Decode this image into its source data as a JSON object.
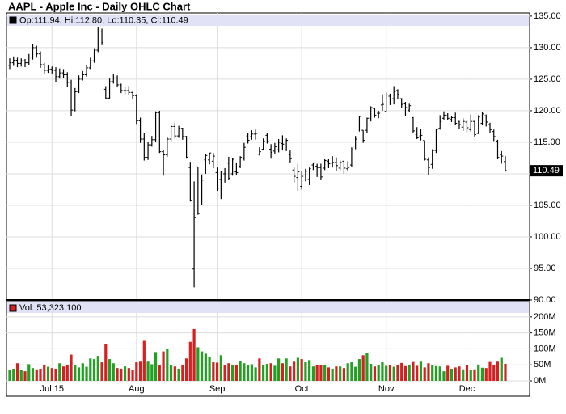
{
  "chart_data": {
    "type": "ohlc",
    "title": "AAPL - Apple Inc - Daily OHLC Chart",
    "ohlc_legend": "Op:111.94, Hi:112.80, Lo:110.35, Cl:110.49",
    "volume_legend": "Vol: 53,323,100",
    "categories": [
      null,
      null,
      null,
      null,
      null,
      null,
      null,
      null,
      null,
      null,
      null,
      "Jul 15",
      null,
      null,
      null,
      null,
      null,
      null,
      null,
      null,
      null,
      null,
      null,
      null,
      null,
      null,
      null,
      null,
      null,
      null,
      null,
      null,
      null,
      "Aug",
      null,
      null,
      null,
      null,
      null,
      null,
      null,
      null,
      null,
      null,
      null,
      null,
      null,
      null,
      null,
      null,
      null,
      null,
      null,
      null,
      "Sep",
      null,
      null,
      null,
      null,
      null,
      null,
      null,
      null,
      null,
      null,
      null,
      null,
      null,
      null,
      null,
      null,
      null,
      null,
      null,
      null,
      null,
      "Oct",
      null,
      null,
      null,
      null,
      null,
      null,
      null,
      null,
      null,
      null,
      null,
      null,
      null,
      null,
      null,
      null,
      null,
      null,
      null,
      null,
      null,
      "Nov",
      null,
      null,
      null,
      null,
      null,
      null,
      null,
      null,
      null,
      null,
      null,
      null,
      null,
      null,
      null,
      null,
      null,
      null,
      null,
      null,
      "Dec",
      null,
      null,
      null,
      null,
      null,
      null,
      null,
      null,
      null,
      null
    ],
    "open": [
      127.2,
      127.6,
      128.0,
      127.5,
      127.9,
      127.6,
      128.5,
      130.0,
      129.0,
      127.3,
      126.4,
      126.6,
      126.4,
      125.4,
      126.0,
      125.7,
      124.5,
      120.1,
      123.0,
      125.0,
      125.7,
      126.8,
      127.9,
      129.6,
      132.5,
      123.4,
      122.0,
      124.6,
      125.2,
      124.1,
      123.2,
      123.2,
      122.9,
      122.4,
      118.4,
      115.5,
      112.6,
      114.6,
      115.4,
      119.7,
      113.5,
      113.0,
      115.5,
      117.5,
      116.0,
      117.2,
      115.9,
      111.0,
      94.9,
      111.1,
      107.1,
      112.2,
      112.2,
      112.0,
      110.2,
      109.1,
      110.0,
      111.7,
      110.0,
      110.3,
      111.2,
      112.4,
      116.0,
      115.9,
      116.3,
      113.1,
      113.9,
      116.1,
      113.9,
      113.6,
      113.8,
      114.8,
      113.8,
      113.0,
      110.6,
      109.4,
      108.0,
      109.8,
      109.1,
      111.4,
      111.2,
      111.0,
      110.9,
      112.0,
      111.7,
      111.8,
      110.9,
      112.0,
      110.8,
      111.4,
      114.4,
      117.1,
      116.9,
      116.9,
      118.8,
      120.3,
      119.6,
      120.9,
      119.9,
      122.3,
      121.9,
      123.2,
      121.9,
      121.1,
      120.1,
      118.9,
      116.2,
      116.0,
      115.3,
      112.2,
      111.5,
      113.7,
      117.2,
      118.8,
      119.2,
      118.6,
      118.9,
      118.3,
      117.4,
      118.2,
      117.0,
      118.3,
      116.4,
      118.0,
      119.2,
      117.8,
      116.7,
      115.2,
      113.0,
      111.94
    ],
    "high": [
      128.3,
      128.6,
      128.4,
      128.3,
      128.2,
      129.0,
      130.6,
      130.3,
      129.4,
      127.6,
      127.2,
      127.0,
      126.9,
      126.7,
      126.6,
      126.1,
      124.9,
      123.6,
      125.6,
      126.3,
      127.2,
      128.4,
      129.9,
      133.2,
      133.0,
      123.9,
      125.1,
      125.8,
      125.6,
      124.3,
      123.8,
      123.9,
      123.0,
      122.6,
      118.9,
      116.4,
      115.0,
      116.0,
      119.9,
      120.0,
      113.8,
      115.9,
      117.8,
      118.1,
      117.6,
      117.3,
      116.0,
      111.9,
      108.8,
      111.1,
      109.9,
      113.2,
      113.3,
      113.3,
      111.0,
      110.5,
      110.9,
      112.7,
      112.5,
      111.8,
      112.8,
      114.9,
      116.4,
      116.9,
      117.0,
      114.2,
      115.6,
      116.5,
      114.7,
      114.9,
      115.5,
      116.1,
      115.6,
      113.7,
      111.0,
      111.6,
      110.4,
      110.8,
      111.0,
      111.8,
      111.6,
      111.6,
      112.3,
      112.3,
      112.8,
      112.6,
      112.1,
      112.1,
      112.0,
      114.2,
      116.0,
      119.2,
      116.9,
      118.9,
      120.7,
      120.4,
      120.0,
      122.6,
      122.9,
      122.7,
      123.9,
      123.4,
      122.0,
      121.4,
      121.1,
      119.0,
      117.4,
      117.1,
      115.3,
      112.6,
      113.9,
      117.1,
      119.3,
      119.9,
      119.6,
      119.2,
      119.7,
      118.4,
      118.8,
      118.5,
      119.4,
      118.4,
      119.3,
      119.8,
      119.4,
      118.1,
      117.0,
      115.4,
      113.6,
      112.8
    ],
    "low": [
      126.6,
      127.1,
      126.9,
      127.0,
      126.9,
      127.3,
      128.1,
      128.4,
      126.8,
      125.8,
      126.0,
      125.9,
      124.6,
      125.1,
      125.2,
      123.8,
      119.2,
      119.9,
      122.8,
      124.8,
      125.4,
      126.6,
      127.6,
      129.3,
      130.4,
      121.9,
      121.8,
      124.3,
      123.7,
      122.8,
      122.6,
      122.5,
      121.9,
      117.9,
      114.9,
      112.1,
      112.2,
      114.3,
      115.1,
      113.3,
      109.7,
      112.7,
      115.1,
      115.6,
      115.7,
      115.4,
      112.4,
      105.6,
      92.0,
      103.5,
      105.1,
      110.0,
      111.5,
      110.9,
      107.3,
      106.0,
      108.6,
      109.0,
      109.7,
      109.8,
      110.9,
      112.1,
      114.8,
      115.4,
      115.4,
      112.9,
      113.7,
      114.8,
      112.4,
      113.1,
      113.4,
      113.7,
      113.6,
      111.8,
      108.6,
      107.3,
      107.5,
      108.8,
      108.2,
      110.6,
      109.5,
      109.1,
      110.6,
      110.9,
      111.0,
      110.5,
      110.6,
      110.0,
      110.5,
      111.1,
      113.9,
      116.7,
      114.9,
      116.4,
      118.3,
      118.9,
      118.8,
      120.0,
      119.9,
      120.9,
      121.0,
      121.9,
      120.5,
      119.2,
      119.8,
      116.5,
      115.5,
      115.3,
      112.1,
      109.8,
      110.8,
      113.3,
      117.0,
      118.6,
      118.5,
      118.2,
      117.8,
      117.1,
      116.8,
      116.6,
      116.7,
      115.9,
      116.3,
      117.7,
      117.5,
      116.5,
      115.2,
      112.3,
      111.6,
      110.35
    ],
    "close": [
      127.6,
      128.0,
      127.5,
      127.9,
      127.6,
      128.5,
      130.0,
      129.0,
      127.3,
      126.4,
      126.6,
      126.4,
      125.4,
      126.0,
      125.7,
      124.5,
      120.1,
      123.0,
      125.0,
      125.7,
      126.8,
      127.9,
      129.6,
      132.5,
      130.8,
      122.0,
      124.6,
      125.2,
      124.1,
      123.2,
      123.2,
      122.9,
      122.4,
      118.4,
      115.5,
      112.6,
      114.6,
      115.4,
      119.7,
      113.5,
      113.0,
      115.5,
      117.5,
      116.0,
      117.2,
      115.9,
      112.6,
      105.8,
      103.1,
      103.7,
      109.0,
      112.9,
      113.3,
      112.8,
      107.7,
      110.4,
      110.0,
      109.3,
      112.3,
      110.2,
      112.6,
      114.2,
      115.3,
      116.3,
      116.4,
      113.5,
      115.2,
      115.2,
      113.4,
      114.3,
      115.0,
      114.7,
      115.3,
      112.4,
      109.6,
      110.3,
      109.6,
      110.4,
      110.8,
      111.7,
      111.0,
      109.5,
      112.1,
      111.6,
      111.8,
      111.3,
      111.8,
      110.9,
      111.0,
      113.8,
      115.5,
      119.1,
      115.3,
      118.8,
      120.5,
      119.3,
      119.6,
      121.0,
      122.5,
      121.2,
      123.0,
      122.6,
      121.0,
      120.5,
      120.8,
      116.8,
      115.7,
      116.1,
      112.3,
      111.0,
      113.7,
      117.0,
      118.3,
      119.3,
      118.8,
      118.9,
      118.0,
      117.8,
      118.3,
      117.3,
      118.3,
      116.2,
      119.0,
      119.5,
      118.2,
      117.0,
      115.9,
      112.6,
      112.8,
      110.49
    ],
    "volume": [
      35,
      38,
      55,
      33,
      30,
      52,
      40,
      36,
      38,
      50,
      44,
      40,
      38,
      55,
      45,
      50,
      82,
      48,
      42,
      55,
      44,
      70,
      68,
      78,
      58,
      115,
      68,
      55,
      40,
      38,
      45,
      40,
      33,
      58,
      60,
      125,
      60,
      52,
      90,
      50,
      92,
      100,
      48,
      45,
      38,
      50,
      70,
      122,
      162,
      105,
      92,
      85,
      75,
      58,
      57,
      80,
      50,
      55,
      48,
      48,
      62,
      55,
      50,
      52,
      42,
      70,
      48,
      53,
      55,
      47,
      70,
      55,
      70,
      45,
      60,
      72,
      68,
      58,
      65,
      45,
      50,
      50,
      50,
      42,
      38,
      45,
      45,
      40,
      55,
      58,
      44,
      68,
      80,
      88,
      53,
      45,
      50,
      58,
      47,
      50,
      44,
      48,
      56,
      46,
      48,
      59,
      47,
      60,
      42,
      55,
      50,
      46,
      45,
      30,
      47,
      38,
      42,
      45,
      36,
      48,
      35,
      36,
      51,
      41,
      40,
      59,
      50,
      60,
      72,
      53.3231
    ],
    "bar_color": "#000000",
    "up_color": "#22a022",
    "down_color": "#d42020",
    "ylim": [
      90,
      135.5
    ],
    "yticks": [
      {
        "value": 90,
        "label": "90.00"
      },
      {
        "value": 95,
        "label": "95.00"
      },
      {
        "value": 100,
        "label": "100.00"
      },
      {
        "value": 105,
        "label": "105.00"
      },
      {
        "value": 110,
        "label": "110.00"
      },
      {
        "value": 115,
        "label": "115.00"
      },
      {
        "value": 120,
        "label": "120.00"
      },
      {
        "value": 125,
        "label": "125.00"
      },
      {
        "value": 130,
        "label": "130.00"
      },
      {
        "value": 135,
        "label": "135.00"
      }
    ],
    "volume_ylim": [
      0,
      235
    ],
    "volume_yticks": [
      {
        "value": 0,
        "label": "0M"
      },
      {
        "value": 50,
        "label": "50M"
      },
      {
        "value": 100,
        "label": "100M"
      },
      {
        "value": 150,
        "label": "150M"
      },
      {
        "value": 200,
        "label": "200M"
      }
    ],
    "grid": true
  }
}
